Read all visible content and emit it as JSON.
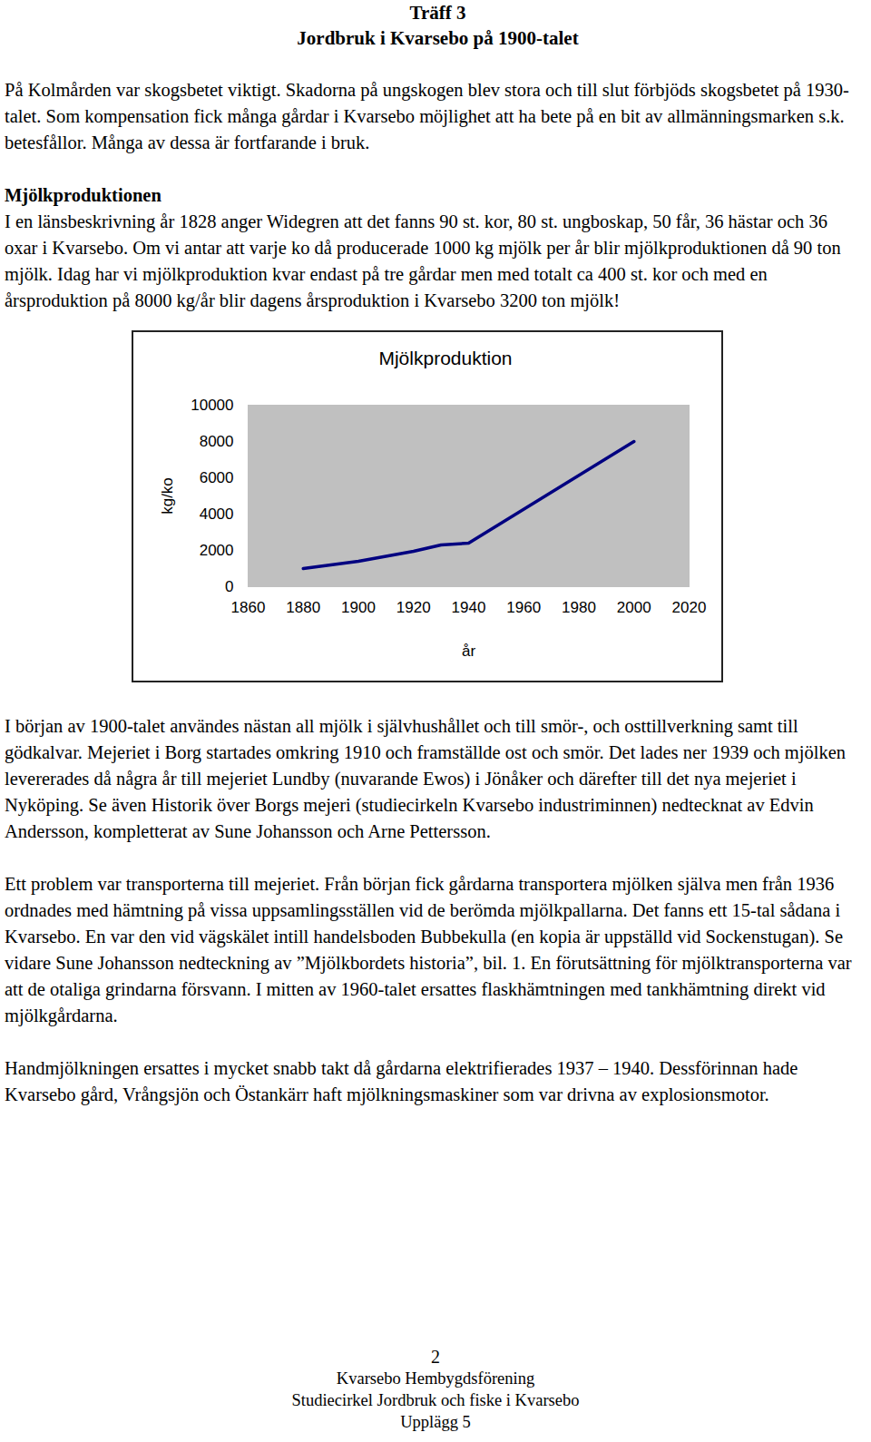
{
  "header": {
    "lines": [
      "Träff 3",
      "Jordbruk i Kvarsebo på 1900-talet"
    ]
  },
  "intro": "På Kolmården var skogsbetet viktigt. Skadorna på ungskogen blev stora och till slut förbjöds skogsbetet på 1930-talet. Som kompensation fick många gårdar i Kvarsebo möjlighet att ha bete på en bit av allmänningsmarken s.k. betesfållor. Många av dessa är fortfarande i bruk.",
  "section": {
    "heading": "Mjölkproduktionen",
    "text": "I en länsbeskrivning år 1828 anger Widegren att det fanns 90 st. kor, 80 st. ungboskap, 50 får, 36 hästar och 36 oxar i Kvarsebo. Om vi antar att varje ko då producerade 1000 kg mjölk per år blir mjölkproduktionen då 90 ton mjölk. Idag har vi mjölkproduktion kvar endast på tre gårdar men med totalt ca 400 st. kor och med en årsproduktion på 8000 kg/år blir dagens årsproduktion i Kvarsebo 3200 ton mjölk!"
  },
  "chart_data": {
    "type": "line",
    "title": "Mjölkproduktion",
    "x_label": "år",
    "y_label": "kg/ko",
    "x": [
      1880,
      1900,
      1920,
      1930,
      1940,
      2000
    ],
    "values": [
      1000,
      1400,
      1950,
      2300,
      2400,
      8000
    ],
    "color": "#000080",
    "background": "#c0c0c0",
    "xlim": [
      1860,
      2020
    ],
    "xticks": [
      1860,
      1880,
      1900,
      1920,
      1940,
      1960,
      1980,
      2000,
      2020
    ],
    "ylim": [
      0,
      10000
    ],
    "yticks": [
      0,
      2000,
      4000,
      6000,
      8000,
      10000
    ],
    "grid": false
  },
  "paragraphs_after": [
    "I början av 1900-talet användes nästan all mjölk i självhushållet och till smör-, och osttillverkning samt till gödkalvar. Mejeriet i Borg startades omkring 1910 och framställde ost och smör. Det lades ner 1939 och mjölken levererades då några år till mejeriet Lundby (nuvarande Ewos) i Jönåker och därefter till det nya mejeriet i Nyköping. Se även Historik över Borgs mejeri (studiecirkeln Kvarsebo industriminnen) nedtecknat av Edvin Andersson, kompletterat av Sune Johansson och Arne Pettersson.",
    "Ett problem var transporterna till mejeriet. Från början fick gårdarna transportera mjölken själva men från 1936 ordnades med hämtning på vissa uppsamlingsställen vid de berömda mjölkpallarna. Det fanns ett 15-tal sådana i Kvarsebo. En var den vid vägskälet intill handelsboden Bubbekulla (en kopia är uppställd vid Sockenstugan). Se vidare Sune Johansson nedteckning av ”Mjölkbordets historia”, bil. 1. En förutsättning för mjölktransporterna var att de otaliga grindarna försvann. I mitten av 1960-talet ersattes flaskhämtningen med tankhämtning direkt vid mjölkgårdarna.",
    "Handmjölkningen ersattes i mycket snabb takt då gårdarna elektrifierades 1937 – 1940. Dessförinnan hade Kvarsebo gård, Vrångsjön och Östankärr haft mjölkningsmaskiner som var drivna av explosionsmotor."
  ],
  "footer": [
    "2",
    "Kvarsebo Hembygdsförening",
    "Studiecirkel Jordbruk och fiske i Kvarsebo",
    "Upplägg 5"
  ]
}
